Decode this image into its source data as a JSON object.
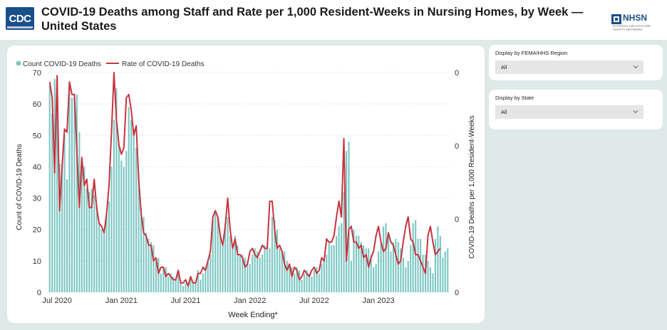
{
  "header": {
    "title": "COVID-19 Deaths among Staff and Rate per 1,000 Resident-Weeks in Nursing Homes, by Week — United States",
    "cdc_logo_text": "CDC",
    "nhsn_logo_text": "NHSN",
    "nhsn_logo_subtext": "NATIONAL HEALTHCARE SAFETY NETWORK"
  },
  "filters": {
    "region": {
      "label": "Display by FEMA/HHS Region",
      "value": "All",
      "icon": "chevron-down-icon"
    },
    "state": {
      "label": "Display by State",
      "value": "All",
      "icon": "chevron-down-icon"
    }
  },
  "colors": {
    "bar": "#7ec8c3",
    "line": "#c7343f",
    "canvas": "#dfe9e7"
  },
  "chart_data": {
    "type": "bar",
    "xlabel": "Week Ending*",
    "ylabel": "Count of COVID-19 Deaths",
    "y2label": "COVID-19 Deaths per 1,000 Resident-Weeks",
    "ylim": [
      0,
      70
    ],
    "yticks": [
      0,
      10,
      20,
      30,
      40,
      50,
      60,
      70
    ],
    "y2ticks": [
      "0",
      "0",
      "0",
      "0"
    ],
    "grid": true,
    "legend_position": "top-left",
    "series": [
      {
        "name": "Count COVID-19 Deaths",
        "kind": "bar",
        "values": [
          66,
          57,
          68,
          66,
          41,
          41,
          50,
          36,
          67,
          62,
          63,
          63,
          51,
          39,
          40,
          33,
          32,
          33,
          31,
          28,
          22,
          20,
          19,
          25,
          29,
          40,
          55,
          65,
          47,
          42,
          40,
          45,
          59,
          55,
          52,
          46,
          38,
          27,
          24,
          19,
          17,
          16,
          15,
          10,
          11,
          6,
          8,
          8,
          5,
          6,
          5,
          4,
          7,
          3,
          2,
          3,
          3,
          5,
          3,
          3,
          7,
          4,
          6,
          8,
          10,
          12,
          23,
          26,
          24,
          18,
          16,
          22,
          24,
          18,
          14,
          18,
          15,
          12,
          12,
          11,
          10,
          9,
          12,
          14,
          13,
          11,
          12,
          15,
          14,
          14,
          24,
          23,
          20,
          14,
          13,
          13,
          10,
          9,
          8,
          6,
          8,
          7,
          4,
          6,
          7,
          6,
          5,
          7,
          8,
          6,
          9,
          10,
          12,
          16,
          15,
          15,
          18,
          21,
          22,
          32,
          45,
          48,
          10,
          20,
          18,
          18,
          16,
          15,
          14,
          14,
          12,
          8,
          9,
          13,
          16,
          21,
          22,
          19,
          13,
          16,
          17,
          16,
          14,
          11,
          8,
          10,
          15,
          22,
          23,
          17,
          17,
          12,
          12,
          10,
          8,
          6,
          17,
          21,
          18,
          11,
          13,
          14
        ]
      },
      {
        "name": "Rate of COVID-19 Deaths",
        "kind": "line",
        "values": [
          67,
          62,
          38,
          69,
          26,
          40,
          52,
          51,
          67,
          63,
          63,
          45,
          27,
          43,
          34,
          36,
          27,
          27,
          36,
          27,
          22,
          21,
          19,
          25,
          34,
          51,
          70,
          55,
          47,
          44,
          46,
          62,
          63,
          58,
          50,
          53,
          36,
          25,
          19,
          18,
          15,
          15,
          10,
          11,
          6,
          8,
          8,
          5,
          6,
          5,
          4,
          4,
          7,
          3,
          3,
          4,
          2,
          5,
          3,
          3,
          6,
          6,
          8,
          7,
          10,
          13,
          24,
          26,
          24,
          18,
          15,
          21,
          30,
          20,
          14,
          17,
          12,
          12,
          11,
          8,
          9,
          13,
          14,
          12,
          11,
          13,
          15,
          14,
          14,
          29,
          29,
          20,
          14,
          15,
          13,
          9,
          7,
          9,
          5,
          8,
          7,
          4,
          5,
          7,
          6,
          5,
          7,
          8,
          6,
          7,
          11,
          10,
          17,
          16,
          16,
          18,
          24,
          29,
          24,
          49,
          10,
          20,
          21,
          16,
          16,
          14,
          15,
          11,
          12,
          8,
          11,
          13,
          18,
          21,
          16,
          13,
          14,
          19,
          16,
          15,
          12,
          9,
          10,
          16,
          21,
          24,
          17,
          16,
          12,
          12,
          10,
          8,
          6,
          18,
          21,
          16,
          12,
          13,
          14
        ]
      }
    ],
    "x_tick_labels": [
      "Jul 2020",
      "Jan 2021",
      "Jul 2021",
      "Jan 2022",
      "Jul 2022",
      "Jan 2023"
    ],
    "x_tick_weeks": [
      3,
      29,
      55,
      81,
      107,
      133
    ]
  }
}
